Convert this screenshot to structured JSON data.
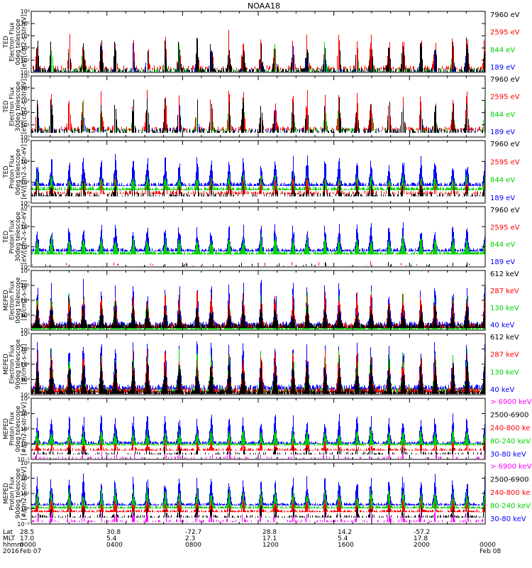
{
  "title": "NOAA18",
  "x_axis": {
    "rows": [
      {
        "label": "Lat",
        "values": [
          "28.5",
          "30.8",
          "-72.7",
          "28.8",
          "14.2",
          "-57.2",
          ""
        ]
      },
      {
        "label": "MLT",
        "values": [
          "17.0",
          "5.4",
          "2.3",
          "17.1",
          "5.4",
          "17.8",
          ""
        ]
      },
      {
        "label": "hhmm",
        "values": [
          "0000",
          "0400",
          "0800",
          "1200",
          "1600",
          "2000",
          "0000"
        ]
      },
      {
        "label": "2016",
        "values": [
          "Feb 07",
          "",
          "",
          "",
          "",
          "",
          "Feb 08"
        ]
      }
    ]
  },
  "colors": {
    "black": "#000000",
    "red": "#ff0000",
    "green": "#00d000",
    "blue": "#0000ff",
    "magenta": "#ff00ff"
  },
  "chart_data": [
    {
      "type": "line",
      "instrument": "TED",
      "label_lines": [
        "TED",
        "Electron Flux",
        "0deg telescope",
        "[eV/[cm2-s-str-eV]"
      ],
      "ylim_exp": [
        1,
        6
      ],
      "y_ticks": [
        "10¹",
        "10²",
        "10³",
        "10⁴",
        "10⁵",
        "10⁶"
      ],
      "legend": [
        {
          "text": "7960 eV",
          "color": "black"
        },
        {
          "text": "2595 eV",
          "color": "red"
        },
        {
          "text": "844 eV",
          "color": "green"
        },
        {
          "text": "189 eV",
          "color": "blue"
        }
      ],
      "series": [
        {
          "color": "blue",
          "base": 1.1,
          "amp": 2.2,
          "density": 0.3
        },
        {
          "color": "green",
          "base": 1.2,
          "amp": 2.5,
          "density": 0.35
        },
        {
          "color": "red",
          "base": 1.4,
          "amp": 3.2,
          "density": 0.45
        },
        {
          "color": "black",
          "base": 1.2,
          "amp": 3.0,
          "density": 0.55
        }
      ]
    },
    {
      "type": "line",
      "instrument": "TED",
      "label_lines": [
        "TED",
        "Electron Flux",
        "30deg telescope",
        "[eV/[cm2-s-str-eV]"
      ],
      "ylim_exp": [
        0,
        5
      ],
      "y_ticks": [
        "10⁰",
        "10¹",
        "10²",
        "10³",
        "10⁴",
        "10⁵"
      ],
      "legend": [
        {
          "text": "7960 eV",
          "color": "black"
        },
        {
          "text": "2595 eV",
          "color": "red"
        },
        {
          "text": "844 eV",
          "color": "green"
        },
        {
          "text": "189 eV",
          "color": "blue"
        }
      ],
      "series": [
        {
          "color": "blue",
          "base": 0.6,
          "amp": 2.3,
          "density": 0.25
        },
        {
          "color": "green",
          "base": 0.6,
          "amp": 2.5,
          "density": 0.3
        },
        {
          "color": "red",
          "base": 0.7,
          "amp": 3.4,
          "density": 0.45
        },
        {
          "color": "black",
          "base": 0.5,
          "amp": 3.1,
          "density": 0.5
        }
      ]
    },
    {
      "type": "line",
      "instrument": "TED",
      "label_lines": [
        "TED",
        "Proton Flux",
        "0deg telescope",
        "[eV/[cm2-s-str-eV]"
      ],
      "ylim_exp": [
        0,
        6
      ],
      "y_ticks": [
        "10⁰",
        "10²",
        "10⁴",
        "10⁶"
      ],
      "legend": [
        {
          "text": "7960 eV",
          "color": "black"
        },
        {
          "text": "2595 eV",
          "color": "red"
        },
        {
          "text": "844 eV",
          "color": "green"
        },
        {
          "text": "189 eV",
          "color": "blue"
        }
      ],
      "series": [
        {
          "color": "blue",
          "base": 1.8,
          "amp": 2.8,
          "density": 1.0
        },
        {
          "color": "green",
          "base": 1.4,
          "amp": 1.4,
          "density": 1.0
        },
        {
          "color": "red",
          "base": 1.0,
          "amp": 1.4,
          "density": 0.6
        },
        {
          "color": "black",
          "base": 0.8,
          "amp": 1.2,
          "density": 0.5
        }
      ]
    },
    {
      "type": "line",
      "instrument": "TED",
      "label_lines": [
        "TED",
        "Proton Flux",
        "30deg telescope",
        "[eV/[cm2-s-str-eV]"
      ],
      "ylim_exp": [
        0,
        6
      ],
      "y_ticks": [
        "10⁰",
        "10²",
        "10⁴",
        "10⁶"
      ],
      "legend": [
        {
          "text": "7960 eV",
          "color": "black"
        },
        {
          "text": "2595 eV",
          "color": "red"
        },
        {
          "text": "844 eV",
          "color": "green"
        },
        {
          "text": "189 eV",
          "color": "blue"
        }
      ],
      "series": [
        {
          "color": "blue",
          "base": 1.7,
          "amp": 2.8,
          "density": 1.0
        },
        {
          "color": "green",
          "base": 1.4,
          "amp": 1.8,
          "density": 1.0
        },
        {
          "color": "red",
          "base": 0.3,
          "amp": 0.2,
          "density": 0.05
        },
        {
          "color": "black",
          "base": 0.2,
          "amp": 0.2,
          "density": 0.05
        }
      ]
    },
    {
      "type": "line",
      "instrument": "MEPED",
      "label_lines": [
        "MEPED",
        "Electron Flux",
        "0deg telescope",
        "[#/cm2-s-str]"
      ],
      "ylim_exp": [
        2,
        6
      ],
      "y_ticks": [
        "10²",
        "10³",
        "10⁴",
        "10⁵",
        "10⁶"
      ],
      "legend": [
        {
          "text": "612 keV",
          "color": "black"
        },
        {
          "text": "287 keV",
          "color": "red"
        },
        {
          "text": "130 keV",
          "color": "green"
        },
        {
          "text": "40 keV",
          "color": "blue"
        }
      ],
      "series": [
        {
          "color": "blue",
          "base": 2.4,
          "amp": 3.0,
          "density": 1.0
        },
        {
          "color": "green",
          "base": 2.2,
          "amp": 2.4,
          "density": 1.0
        },
        {
          "color": "red",
          "base": 2.3,
          "amp": 2.4,
          "density": 1.0
        },
        {
          "color": "black",
          "base": 2.3,
          "amp": 1.5,
          "density": 1.0
        }
      ]
    },
    {
      "type": "line",
      "instrument": "MEPED",
      "label_lines": [
        "MEPED",
        "Electron Flux",
        "90deg telescope",
        "[#/cm2-s-str]"
      ],
      "ylim_exp": [
        2,
        6
      ],
      "y_ticks": [
        "10²",
        "10³",
        "10⁴",
        "10⁵",
        "10⁶"
      ],
      "legend": [
        {
          "text": "612 keV",
          "color": "black"
        },
        {
          "text": "287 keV",
          "color": "red"
        },
        {
          "text": "130 keV",
          "color": "green"
        },
        {
          "text": "40 keV",
          "color": "blue"
        }
      ],
      "series": [
        {
          "color": "blue",
          "base": 2.5,
          "amp": 3.2,
          "density": 1.0
        },
        {
          "color": "green",
          "base": 2.3,
          "amp": 2.8,
          "density": 1.0
        },
        {
          "color": "red",
          "base": 2.3,
          "amp": 2.7,
          "density": 1.0
        },
        {
          "color": "black",
          "base": 2.2,
          "amp": 2.3,
          "density": 1.0
        }
      ]
    },
    {
      "type": "line",
      "instrument": "MEPED",
      "label_lines": [
        "MEPED",
        "Proton Flux",
        "0deg telescope",
        "[#/cm2-s-str-keV]"
      ],
      "ylim_exp": [
        -2,
        6
      ],
      "y_ticks": [
        "10⁻²",
        "10⁰",
        "10²",
        "10⁴",
        "10⁶"
      ],
      "legend": [
        {
          "text": "> 6900 keV",
          "color": "magenta"
        },
        {
          "text": "2500-6900",
          "color": "black"
        },
        {
          "text": "240-800 ke",
          "color": "red"
        },
        {
          "text": "80-240 keV",
          "color": "green"
        },
        {
          "text": "30-80 keV",
          "color": "blue"
        }
      ],
      "series": [
        {
          "color": "blue",
          "base": 0.2,
          "amp": 4.0,
          "density": 1.0
        },
        {
          "color": "green",
          "base": 0.0,
          "amp": 2.2,
          "density": 1.0
        },
        {
          "color": "red",
          "base": -0.7,
          "amp": 1.2,
          "density": 0.8
        },
        {
          "color": "black",
          "base": -1.2,
          "amp": 1.0,
          "density": 0.4
        },
        {
          "color": "magenta",
          "base": -1.8,
          "amp": 0.9,
          "density": 0.3
        }
      ]
    },
    {
      "type": "line",
      "instrument": "MEPED",
      "label_lines": [
        "MEPED",
        "Proton Flux",
        "90deg telescope",
        "[#/cm2-s-str-keV]"
      ],
      "ylim_exp": [
        -2,
        6
      ],
      "y_ticks": [
        "10⁻²",
        "10⁰",
        "10²",
        "10⁴",
        "10⁶"
      ],
      "legend": [
        {
          "text": "> 6900 keV",
          "color": "magenta"
        },
        {
          "text": "2500-6900",
          "color": "black"
        },
        {
          "text": "240-800 ke",
          "color": "red"
        },
        {
          "text": "80-240 keV",
          "color": "green"
        },
        {
          "text": "30-80 keV",
          "color": "blue"
        }
      ],
      "series": [
        {
          "color": "blue",
          "base": 0.6,
          "amp": 4.0,
          "density": 1.0
        },
        {
          "color": "green",
          "base": 0.2,
          "amp": 2.6,
          "density": 1.0
        },
        {
          "color": "red",
          "base": -0.3,
          "amp": 1.6,
          "density": 0.9
        },
        {
          "color": "black",
          "base": -1.0,
          "amp": 1.4,
          "density": 0.5
        },
        {
          "color": "magenta",
          "base": -1.6,
          "amp": 1.2,
          "density": 0.4
        }
      ]
    }
  ]
}
